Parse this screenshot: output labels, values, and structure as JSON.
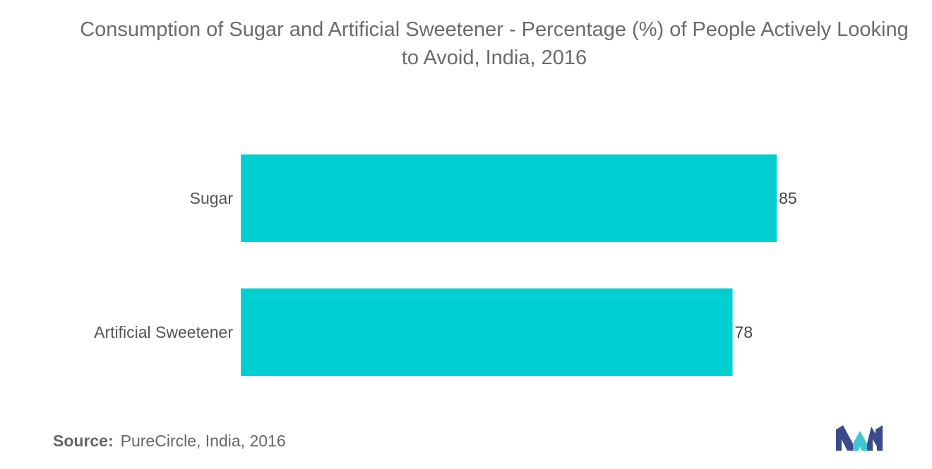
{
  "chart_data": {
    "type": "bar",
    "orientation": "horizontal",
    "title": "Consumption of Sugar and Artificial Sweetener - Percentage (%) of People Actively Looking to Avoid, India, 2016",
    "categories": [
      "Sugar",
      "Artificial Sweetener"
    ],
    "values": [
      85,
      78
    ],
    "data_labels": [
      "85",
      "78"
    ],
    "xlim": [
      0,
      100
    ],
    "grid": false,
    "legend": "none",
    "bar_color": "#00CFD1"
  },
  "source": {
    "label": "Source:",
    "text": "PureCircle, India, 2016"
  },
  "logo": {
    "icon": "mordor-intelligence-logo-icon",
    "colors": [
      "#3b4a8c",
      "#3ec7d3"
    ]
  }
}
